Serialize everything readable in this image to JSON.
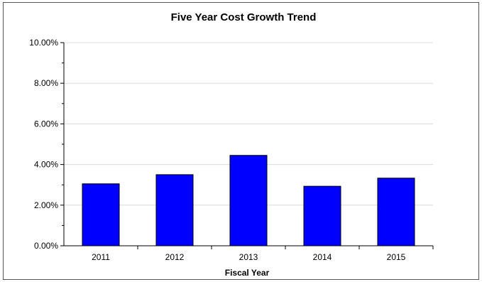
{
  "chart_data": {
    "type": "bar",
    "title": "Five Year Cost Growth Trend",
    "xlabel": "Fiscal Year",
    "ylabel": "",
    "categories": [
      "2011",
      "2012",
      "2013",
      "2014",
      "2015"
    ],
    "values": [
      3.05,
      3.5,
      4.45,
      2.93,
      3.33
    ],
    "ylim": [
      0,
      10
    ],
    "yticks": [
      "0.00%",
      "2.00%",
      "4.00%",
      "6.00%",
      "8.00%",
      "10.00%"
    ],
    "grid": true,
    "legend": "none",
    "bar_color": "#0000ff",
    "bar_edge_color": "#000000"
  }
}
